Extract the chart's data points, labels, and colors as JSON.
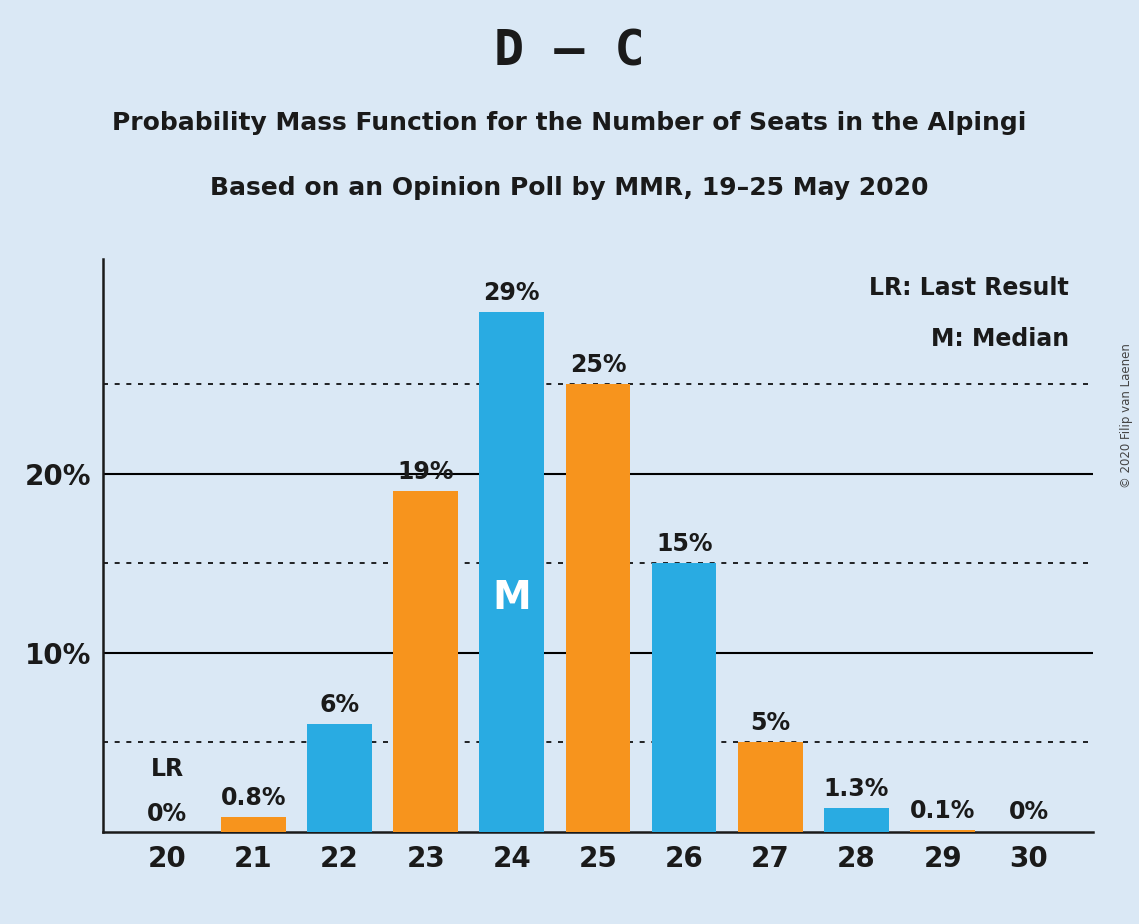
{
  "title": "D – C",
  "subtitle1": "Probability Mass Function for the Number of Seats in the Alpingi",
  "subtitle2": "Based on an Opinion Poll by MMR, 19–25 May 2020",
  "copyright": "© 2020 Filip van Laenen",
  "legend_lr": "LR: Last Result",
  "legend_m": "M: Median",
  "seats": [
    20,
    21,
    22,
    23,
    24,
    25,
    26,
    27,
    28,
    29,
    30
  ],
  "values": [
    0.0,
    0.8,
    6.0,
    19.0,
    29.0,
    25.0,
    15.0,
    5.0,
    1.3,
    0.1,
    0.0
  ],
  "bar_colors": [
    "#29ABE2",
    "#F7941D",
    "#29ABE2",
    "#F7941D",
    "#29ABE2",
    "#F7941D",
    "#29ABE2",
    "#F7941D",
    "#29ABE2",
    "#F7941D",
    "#F7941D"
  ],
  "labels": [
    "0%",
    "0.8%",
    "6%",
    "19%",
    "29%",
    "25%",
    "15%",
    "5%",
    "1.3%",
    "0.1%",
    "0%"
  ],
  "lr_seat": 20,
  "median_seat": 24,
  "solid_gridlines": [
    10,
    20
  ],
  "dotted_gridlines": [
    5,
    15,
    25
  ],
  "ylim": [
    0,
    32
  ],
  "background_color": "#DAE8F5",
  "title_fontsize": 36,
  "subtitle_fontsize": 18,
  "label_fontsize": 17,
  "axis_fontsize": 20,
  "legend_fontsize": 17,
  "bar_width": 0.75
}
